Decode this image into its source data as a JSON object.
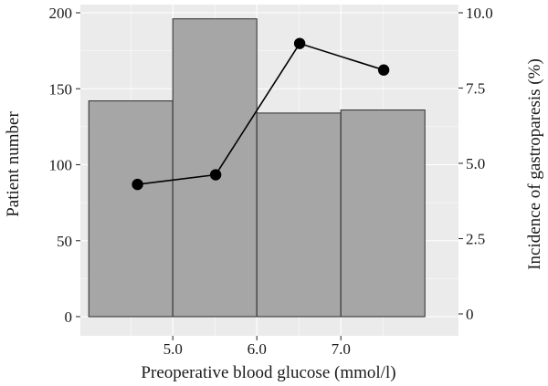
{
  "chart_data": {
    "type": "bar",
    "xlabel": "Preoperative blood glucose (mmol/l)",
    "ylabel": "Patient number",
    "y2label": "Incidence of gastroparesis (%)",
    "xlim": [
      3.9,
      8.4
    ],
    "ylim": [
      0,
      200
    ],
    "y2lim": [
      0,
      10
    ],
    "x_ticks": [
      {
        "value": 5.0,
        "label": "5.0"
      },
      {
        "value": 6.0,
        "label": "6.0"
      },
      {
        "value": 7.0,
        "label": "7.0"
      }
    ],
    "y_ticks": [
      {
        "value": 0,
        "label": "0"
      },
      {
        "value": 50,
        "label": "50"
      },
      {
        "value": 100,
        "label": "100"
      },
      {
        "value": 150,
        "label": "150"
      },
      {
        "value": 200,
        "label": "200"
      }
    ],
    "y2_ticks": [
      {
        "value": 0,
        "label": "0"
      },
      {
        "value": 2.5,
        "label": "2.5"
      },
      {
        "value": 5.0,
        "label": "5.0"
      },
      {
        "value": 7.5,
        "label": "7.5"
      },
      {
        "value": 10.0,
        "label": "10.0"
      }
    ],
    "bars": [
      {
        "x0": 4.0,
        "x1": 5.0,
        "value": 142
      },
      {
        "x0": 5.0,
        "x1": 6.0,
        "value": 196
      },
      {
        "x0": 6.0,
        "x1": 7.0,
        "value": 134
      },
      {
        "x0": 7.0,
        "x1": 8.0,
        "value": 136
      }
    ],
    "line": {
      "axis": "right",
      "points": [
        {
          "x": 4.58,
          "y": 4.3
        },
        {
          "x": 5.51,
          "y": 4.62
        },
        {
          "x": 6.51,
          "y": 8.98
        },
        {
          "x": 7.51,
          "y": 8.1
        }
      ]
    },
    "colors": {
      "panel_bg": "#ebebeb",
      "grid": "#ffffff",
      "bar_fill": "#a6a6a6",
      "bar_stroke": "#2b2b2b",
      "line": "#000000",
      "point": "#000000",
      "text": "#1a1a1a"
    },
    "grid": true
  }
}
